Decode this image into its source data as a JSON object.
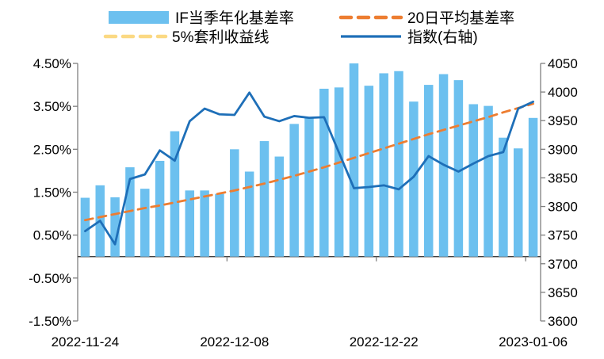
{
  "legend": {
    "items": [
      {
        "label": "IF当季年化基差率",
        "swatch": "bar",
        "color": "#6CC0EF"
      },
      {
        "label": "20日平均基差率",
        "swatch": "dash",
        "color": "#ED7D31"
      },
      {
        "label": "5%套利收益线",
        "swatch": "dash",
        "color": "#FBD983"
      },
      {
        "label": "指数(右轴)",
        "swatch": "line",
        "color": "#1E6FB8"
      }
    ]
  },
  "chart_data": {
    "type": "combo-bar-line-dual-axis",
    "categories": [
      "2022-11-24",
      "2022-11-25",
      "2022-11-28",
      "2022-11-29",
      "2022-11-30",
      "2022-12-01",
      "2022-12-02",
      "2022-12-05",
      "2022-12-06",
      "2022-12-07",
      "2022-12-08",
      "2022-12-09",
      "2022-12-12",
      "2022-12-13",
      "2022-12-14",
      "2022-12-15",
      "2022-12-16",
      "2022-12-19",
      "2022-12-20",
      "2022-12-21",
      "2022-12-22",
      "2022-12-23",
      "2022-12-26",
      "2022-12-27",
      "2022-12-28",
      "2022-12-29",
      "2022-12-30",
      "2023-01-03",
      "2023-01-04",
      "2023-01-05",
      "2023-01-06"
    ],
    "x_tick_labels": [
      "2022-11-24",
      "2022-12-08",
      "2022-12-22",
      "2023-01-06"
    ],
    "x_tick_indices": [
      0,
      10,
      20,
      30
    ],
    "series": [
      {
        "name": "IF当季年化基差率",
        "type": "bar",
        "axis": "left",
        "unit": "%",
        "color": "#6CC0EF",
        "values": [
          1.37,
          1.66,
          1.38,
          2.08,
          1.58,
          2.23,
          2.92,
          1.54,
          1.54,
          1.46,
          2.5,
          1.98,
          2.69,
          2.33,
          3.09,
          3.24,
          3.91,
          3.94,
          4.5,
          3.98,
          4.27,
          4.32,
          3.61,
          4.0,
          4.25,
          4.11,
          3.55,
          3.51,
          2.77,
          2.52,
          3.23
        ]
      },
      {
        "name": "20日平均基差率",
        "type": "line",
        "style": "dashed",
        "axis": "left",
        "unit": "%",
        "color": "#ED7D31",
        "values": [
          0.85,
          0.92,
          0.99,
          1.06,
          1.13,
          1.19,
          1.26,
          1.33,
          1.4,
          1.47,
          1.54,
          1.62,
          1.7,
          1.79,
          1.88,
          1.98,
          2.08,
          2.19,
          2.3,
          2.41,
          2.52,
          2.63,
          2.74,
          2.85,
          2.95,
          3.05,
          3.15,
          3.25,
          3.36,
          3.46,
          3.56
        ]
      },
      {
        "name": "5%套利收益线",
        "type": "line",
        "style": "dashed",
        "axis": "left",
        "unit": "%",
        "color": "#FBD983",
        "constant": 5.0,
        "note": "constant 5% line, above visible axis range"
      },
      {
        "name": "指数(右轴)",
        "type": "line",
        "style": "solid",
        "axis": "right",
        "color": "#1E6FB8",
        "values": [
          3757,
          3775,
          3734,
          3848,
          3856,
          3898,
          3880,
          3949,
          3971,
          3961,
          3960,
          3999,
          3957,
          3949,
          3958,
          3955,
          3956,
          3894,
          3832,
          3834,
          3837,
          3830,
          3852,
          3888,
          3873,
          3861,
          3875,
          3888,
          3895,
          3971,
          3983
        ]
      }
    ],
    "left_axis": {
      "min": -1.5,
      "max": 4.5,
      "step": 1.0,
      "format": "0.00%",
      "tick_labels": [
        "4.50%",
        "3.50%",
        "2.50%",
        "1.50%",
        "0.50%",
        "-0.50%",
        "-1.50%"
      ]
    },
    "right_axis": {
      "min": 3600,
      "max": 4050,
      "step": 50,
      "tick_labels": [
        "4050",
        "4000",
        "3950",
        "3900",
        "3850",
        "3800",
        "3750",
        "3700",
        "3650",
        "3600"
      ]
    },
    "grid": false,
    "legend_position": "top",
    "colors": {
      "bar": "#6CC0EF",
      "ma20": "#ED7D31",
      "arb5": "#FBD983",
      "index": "#1E6FB8",
      "axis": "#7F7F7F",
      "baseline": "#404040",
      "text": "#000000"
    }
  }
}
